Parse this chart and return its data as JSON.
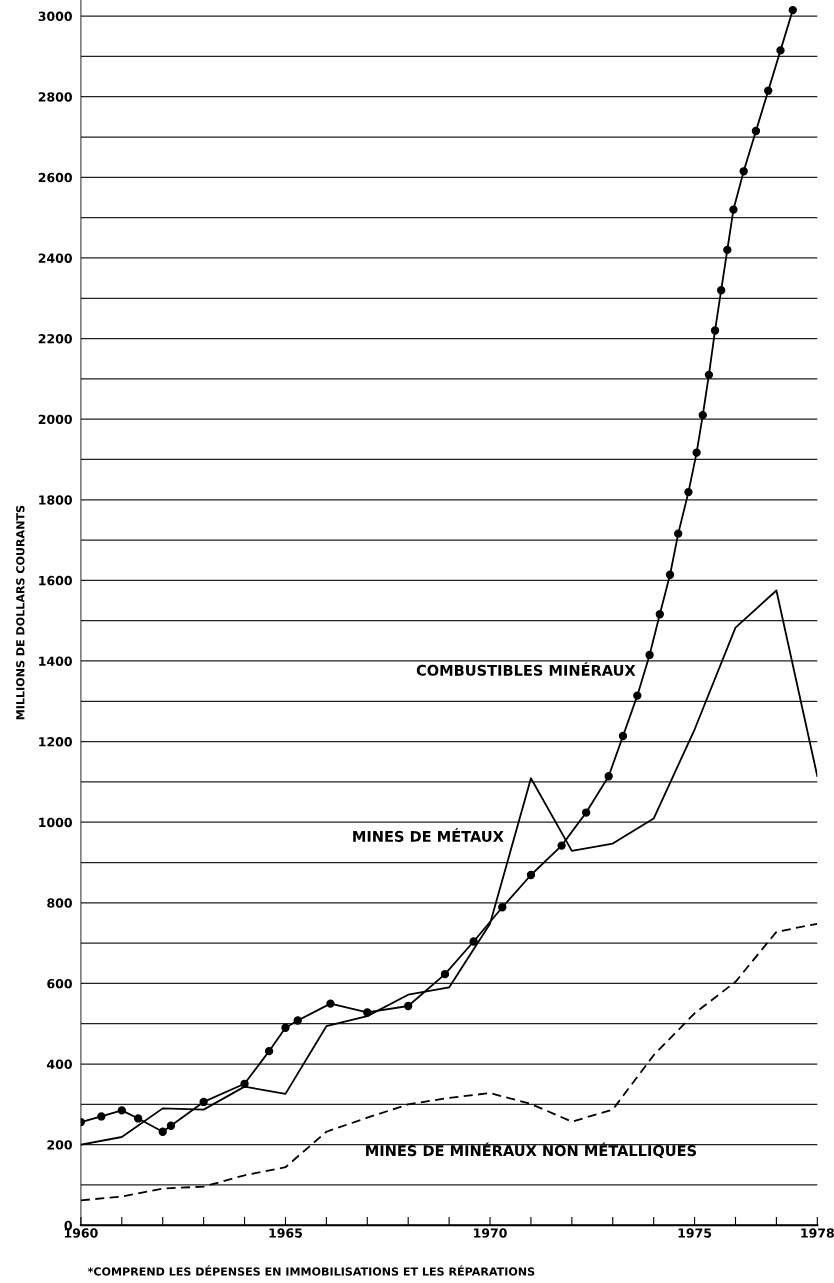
{
  "chart_data": {
    "type": "line",
    "ylabel": "MILLIONS DE DOLLARS COURANTS",
    "xlim": [
      1960,
      1978
    ],
    "xticks": [
      1960,
      {
        "value": 1961,
        "label": null
      },
      {
        "value": 1962,
        "label": null
      },
      {
        "value": 1963,
        "label": null
      },
      {
        "value": 1964,
        "label": null
      },
      1965,
      {
        "value": 1966,
        "label": null
      },
      {
        "value": 1967,
        "label": null
      },
      {
        "value": 1968,
        "label": null
      },
      {
        "value": 1969,
        "label": null
      },
      1970,
      {
        "value": 1971,
        "label": null
      },
      {
        "value": 1972,
        "label": null
      },
      {
        "value": 1973,
        "label": null
      },
      {
        "value": 1974,
        "label": null
      },
      1975,
      {
        "value": 1976,
        "label": null
      },
      {
        "value": 1977,
        "label": null
      },
      1978
    ],
    "ylim": [
      0,
      3040
    ],
    "yticks": [
      0,
      {
        "value": 100,
        "label": null
      },
      200,
      {
        "value": 300,
        "label": null
      },
      400,
      {
        "value": 500,
        "label": null
      },
      600,
      {
        "value": 700,
        "label": null
      },
      800,
      {
        "value": 900,
        "label": null
      },
      1000,
      {
        "value": 1100,
        "label": null
      },
      1200,
      {
        "value": 1300,
        "label": null
      },
      1400,
      {
        "value": 1500,
        "label": null
      },
      1600,
      {
        "value": 1700,
        "label": null
      },
      1800,
      {
        "value": 1900,
        "label": null
      },
      2000,
      {
        "value": 2100,
        "label": null
      },
      2200,
      {
        "value": 2300,
        "label": null
      },
      2400,
      {
        "value": 2500,
        "label": null
      },
      2600,
      {
        "value": 2700,
        "label": null
      },
      2800,
      {
        "value": 2900,
        "label": null
      },
      3000
    ],
    "grid": "y",
    "series": [
      {
        "name": "COMBUSTIBLES MINÉRAUX",
        "color": "#000000",
        "marker": "circle",
        "line_style": "solid",
        "x": [
          1960,
          1960.5,
          1961,
          1961.4,
          1962,
          1962.2,
          1963,
          1964,
          1964.6,
          1965,
          1965.3,
          1966.1,
          1967,
          1968,
          1968.9,
          1969.6,
          1970.3,
          1971,
          1971.75,
          1972.35,
          1972.9,
          1973.25,
          1973.6,
          1973.9,
          1974.15,
          1974.4,
          1974.6,
          1974.85,
          1975.05,
          1975.2,
          1975.35,
          1975.5,
          1975.65,
          1975.8,
          1975.95,
          1976.2,
          1976.5,
          1976.8,
          1977.1,
          1977.4
        ],
        "values": [
          256,
          270,
          285,
          265,
          232,
          247,
          306,
          351,
          432,
          490,
          508,
          550,
          528,
          544,
          623,
          704,
          789,
          869,
          942,
          1024,
          1114,
          1214,
          1314,
          1415,
          1516,
          1614,
          1716,
          1819,
          1917,
          2010,
          2110,
          2220,
          2320,
          2420,
          2520,
          2615,
          2715,
          2815,
          2915,
          3015
        ]
      },
      {
        "name": "MINES DE MÉTAUX",
        "color": "#000000",
        "marker": "none",
        "line_style": "solid",
        "x": [
          1960,
          1961,
          1962,
          1963,
          1964,
          1965,
          1966,
          1967,
          1968,
          1969,
          1970,
          1971,
          1972,
          1973,
          1974,
          1975,
          1976,
          1977,
          1978
        ],
        "values": [
          200,
          219,
          290,
          287,
          344,
          326,
          494,
          519,
          572,
          590,
          748,
          1109,
          929,
          947,
          1009,
          1230,
          1483,
          1575,
          1114
        ]
      },
      {
        "name": "MINES DE MINÉRAUX NON MÉTALLIQUES",
        "color": "#000000",
        "marker": "none",
        "line_style": "dashed",
        "x": [
          1960,
          1961,
          1962,
          1963,
          1964,
          1965,
          1966,
          1967,
          1968,
          1969,
          1970,
          1971,
          1972,
          1973,
          1974,
          1975,
          1976,
          1977,
          1978
        ],
        "values": [
          62,
          71,
          91,
          96,
          124,
          144,
          232,
          267,
          300,
          316,
          328,
          301,
          257,
          287,
          422,
          526,
          604,
          728,
          748
        ]
      }
    ],
    "annotations": [
      "*COMPREND LES DÉPENSES EN IMMOBILISATIONS ET LES RÉPARATIONS"
    ]
  }
}
